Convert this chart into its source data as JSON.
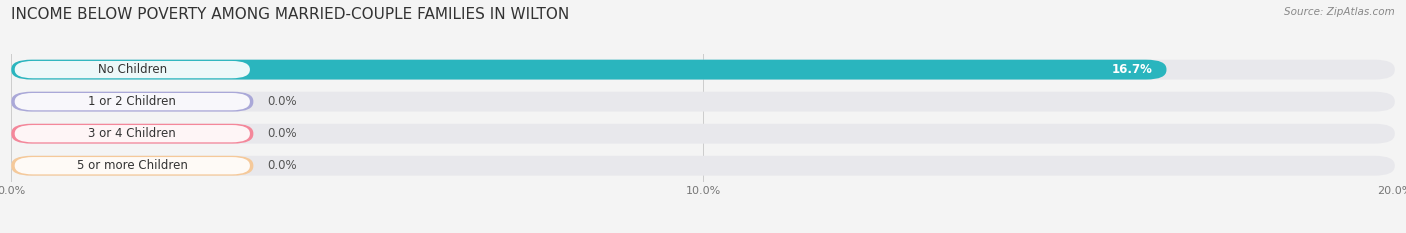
{
  "title": "INCOME BELOW POVERTY AMONG MARRIED-COUPLE FAMILIES IN WILTON",
  "source": "Source: ZipAtlas.com",
  "categories": [
    "No Children",
    "1 or 2 Children",
    "3 or 4 Children",
    "5 or more Children"
  ],
  "values": [
    16.7,
    0.0,
    0.0,
    0.0
  ],
  "bar_colors": [
    "#2ab5be",
    "#aaa8d8",
    "#f4879a",
    "#f5c99a"
  ],
  "label_colors": [
    "#ffffff",
    "#444444",
    "#444444",
    "#444444"
  ],
  "value_label_colors": [
    "#ffffff",
    "#666666",
    "#666666",
    "#666666"
  ],
  "xlim": [
    0,
    20.0
  ],
  "xticks": [
    0.0,
    10.0,
    20.0
  ],
  "xticklabels": [
    "0.0%",
    "10.0%",
    "20.0%"
  ],
  "background_color": "#f4f4f4",
  "bar_background_color": "#e8e8ec",
  "title_fontsize": 11,
  "bar_height": 0.62,
  "bar_label_fontsize": 8.5,
  "category_label_fontsize": 8.5,
  "zero_bar_width": 3.5
}
